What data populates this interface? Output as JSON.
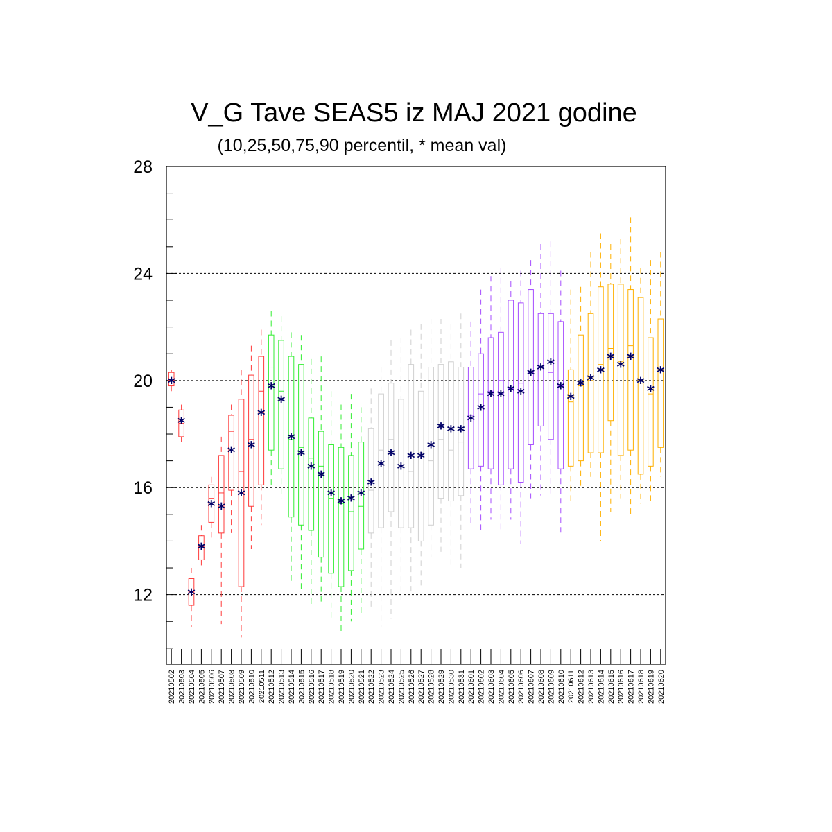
{
  "chart_data": {
    "type": "box",
    "title": "V_G Tave SEAS5 iz MAJ 2021 godine",
    "subtitle": "(10,25,50,75,90 percentil, * mean val)",
    "ylim": [
      9.4,
      28
    ],
    "yticks": [
      12,
      16,
      20,
      24,
      28
    ],
    "ygrid": [
      12,
      16,
      20,
      24,
      28
    ],
    "mean_marker": "*",
    "mean_color": "#000066",
    "group_colors": [
      "#ff3b3b",
      "#33ee33",
      "#cfcfcf",
      "#a64dff",
      "#ffb000"
    ],
    "categories": [
      "20210502",
      "20210503",
      "20210504",
      "20210505",
      "20210506",
      "20210507",
      "20210508",
      "20210509",
      "20210510",
      "20210511",
      "20210512",
      "20210513",
      "20210514",
      "20210515",
      "20210516",
      "20210517",
      "20210518",
      "20210519",
      "20210520",
      "20210521",
      "20210522",
      "20210523",
      "20210524",
      "20210525",
      "20210526",
      "20210527",
      "20210528",
      "20210529",
      "20210530",
      "20210531",
      "20210601",
      "20210602",
      "20210603",
      "20210604",
      "20210605",
      "20210606",
      "20210607",
      "20210608",
      "20210609",
      "20210610",
      "20210611",
      "20210612",
      "20210613",
      "20210614",
      "20210615",
      "20210616",
      "20210617",
      "20210618",
      "20210619",
      "20210620"
    ],
    "groups": [
      0,
      0,
      0,
      0,
      0,
      0,
      0,
      0,
      0,
      0,
      1,
      1,
      1,
      1,
      1,
      1,
      1,
      1,
      1,
      1,
      2,
      2,
      2,
      2,
      2,
      2,
      2,
      2,
      2,
      2,
      3,
      3,
      3,
      3,
      3,
      3,
      3,
      3,
      3,
      3,
      4,
      4,
      4,
      4,
      4,
      4,
      4,
      4,
      4,
      4
    ],
    "p10": [
      19.6,
      17.7,
      10.8,
      13.0,
      14.0,
      10.9,
      14.3,
      10.4,
      13.7,
      14.6,
      16.0,
      15.6,
      12.5,
      12.2,
      11.5,
      11.6,
      11.0,
      10.6,
      11.0,
      11.3,
      11.5,
      10.8,
      11.1,
      11.8,
      12.0,
      12.3,
      13.4,
      13.6,
      13.0,
      13.0,
      14.6,
      14.3,
      14.8,
      14.4,
      14.8,
      13.9,
      15.6,
      15.7,
      15.7,
      14.2,
      15.5,
      16.0,
      16.4,
      14.0,
      15.1,
      15.6,
      15.0,
      15.4,
      15.5,
      16.4
    ],
    "p25": [
      19.8,
      17.9,
      11.6,
      13.3,
      14.7,
      14.3,
      15.9,
      12.3,
      15.3,
      16.1,
      17.4,
      16.7,
      14.9,
      14.6,
      14.4,
      13.4,
      12.8,
      12.3,
      12.9,
      13.7,
      14.3,
      14.5,
      15.1,
      14.5,
      14.5,
      14.0,
      14.6,
      15.6,
      15.5,
      15.7,
      16.7,
      16.8,
      16.7,
      16.1,
      16.7,
      16.2,
      17.6,
      18.3,
      17.8,
      16.7,
      16.8,
      17.0,
      17.3,
      17.3,
      18.5,
      17.2,
      17.4,
      16.5,
      16.8,
      17.5
    ],
    "p50": [
      20.0,
      18.4,
      12.1,
      13.8,
      15.6,
      15.8,
      18.1,
      16.6,
      17.8,
      19.6,
      20.5,
      19.6,
      17.8,
      17.5,
      17.1,
      16.8,
      15.6,
      15.4,
      15.1,
      15.3,
      15.9,
      17.4,
      17.8,
      16.8,
      16.6,
      17.3,
      17.0,
      17.8,
      17.4,
      17.7,
      18.7,
      19.5,
      19.6,
      20.0,
      19.7,
      19.9,
      20.3,
      20.4,
      20.3,
      19.8,
      19.2,
      19.8,
      20.0,
      20.6,
      21.2,
      20.7,
      21.3,
      19.9,
      19.5,
      20.4
    ],
    "p75": [
      20.3,
      18.9,
      12.6,
      14.2,
      16.1,
      17.2,
      18.7,
      19.3,
      20.2,
      20.9,
      21.7,
      21.5,
      20.9,
      20.6,
      18.6,
      18.1,
      17.6,
      17.5,
      17.2,
      17.7,
      18.2,
      19.5,
      19.9,
      19.3,
      20.6,
      19.6,
      20.5,
      20.6,
      20.7,
      20.5,
      20.5,
      21.0,
      21.6,
      21.8,
      23.0,
      22.9,
      23.4,
      22.5,
      22.5,
      22.2,
      20.4,
      21.7,
      22.5,
      23.5,
      23.6,
      23.6,
      23.4,
      23.1,
      21.6,
      22.3
    ],
    "p90": [
      20.4,
      19.1,
      13.0,
      14.6,
      16.4,
      17.9,
      19.1,
      20.4,
      21.3,
      21.9,
      22.6,
      22.4,
      21.8,
      21.7,
      20.8,
      20.9,
      19.6,
      19.1,
      19.5,
      19.0,
      19.7,
      20.5,
      21.5,
      21.6,
      21.9,
      22.1,
      22.3,
      22.3,
      22.1,
      22.5,
      22.2,
      23.4,
      23.9,
      24.2,
      23.7,
      24.1,
      24.5,
      25.1,
      25.2,
      24.1,
      23.4,
      23.5,
      24.8,
      25.5,
      25.1,
      25.3,
      26.1,
      24.2,
      24.5,
      24.8
    ],
    "mean": [
      20.0,
      18.5,
      12.1,
      13.8,
      15.4,
      15.3,
      17.4,
      15.8,
      17.6,
      18.8,
      19.8,
      19.3,
      17.9,
      17.3,
      16.8,
      16.5,
      15.8,
      15.5,
      15.6,
      15.8,
      16.2,
      16.9,
      17.3,
      16.8,
      17.2,
      17.2,
      17.6,
      18.3,
      18.2,
      18.2,
      18.6,
      19.0,
      19.5,
      19.5,
      19.7,
      19.6,
      20.3,
      20.5,
      20.7,
      19.8,
      19.4,
      19.9,
      20.1,
      20.4,
      20.9,
      20.6,
      20.9,
      20.0,
      19.7,
      20.4
    ]
  }
}
